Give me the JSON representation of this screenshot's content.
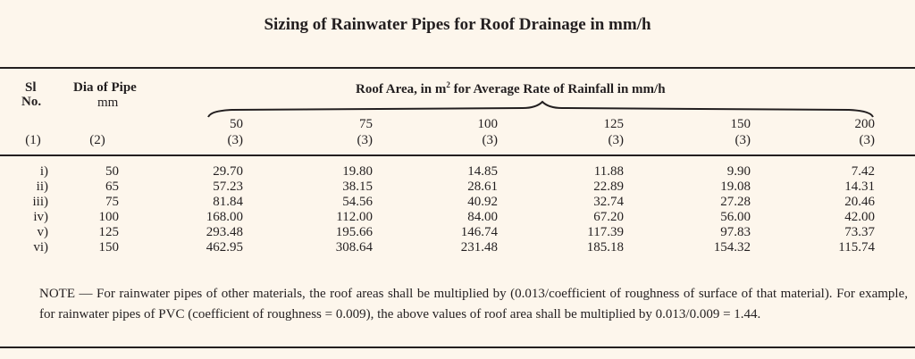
{
  "title": "Sizing of Rainwater Pipes for Roof Drainage in mm/h",
  "headers": {
    "sl": "Sl",
    "no": "No.",
    "dia": "Dia of Pipe",
    "dia_unit": "mm",
    "roof_area_pre": "Roof Area, in m",
    "roof_area_sup": "2",
    "roof_area_post": " for Average Rate of Rainfall in mm/h",
    "rainfall": [
      "50",
      "75",
      "100",
      "125",
      "150",
      "200"
    ],
    "col_nums": [
      "(1)",
      "(2)",
      "(3)",
      "(3)",
      "(3)",
      "(3)",
      "(3)",
      "(3)"
    ]
  },
  "rows": [
    {
      "sl": "i)",
      "dia": "50",
      "values": [
        "29.70",
        "19.80",
        "14.85",
        "11.88",
        "9.90",
        "7.42"
      ]
    },
    {
      "sl": "ii)",
      "dia": "65",
      "values": [
        "57.23",
        "38.15",
        "28.61",
        "22.89",
        "19.08",
        "14.31"
      ]
    },
    {
      "sl": "iii)",
      "dia": "75",
      "values": [
        "81.84",
        "54.56",
        "40.92",
        "32.74",
        "27.28",
        "20.46"
      ]
    },
    {
      "sl": "iv)",
      "dia": "100",
      "values": [
        "168.00",
        "112.00",
        "84.00",
        "67.20",
        "56.00",
        "42.00"
      ]
    },
    {
      "sl": "v)",
      "dia": "125",
      "values": [
        "293.48",
        "195.66",
        "146.74",
        "117.39",
        "97.83",
        "73.37"
      ]
    },
    {
      "sl": "vi)",
      "dia": "150",
      "values": [
        "462.95",
        "308.64",
        "231.48",
        "185.18",
        "154.32",
        "115.74"
      ]
    }
  ],
  "note": "NOTE — For rainwater pipes of other materials, the roof areas shall be multiplied by (0.013/coefficient of roughness of surface of that material). For example, for rainwater pipes of PVC (coefficient of roughness = 0.009), the above values of roof area shall be multiplied by 0.013/0.009 = 1.44."
}
